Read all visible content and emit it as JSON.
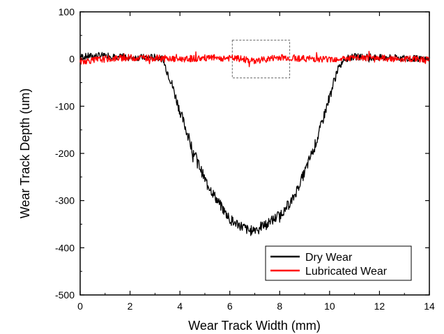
{
  "chart_data": {
    "type": "line",
    "title": "",
    "xlabel": "Wear Track Width (mm)",
    "ylabel": "Wear Track Depth (um)",
    "xlim": [
      0,
      14
    ],
    "ylim": [
      -500,
      100
    ],
    "x_ticks": [
      "0",
      "2",
      "4",
      "6",
      "8",
      "10",
      "12",
      "14"
    ],
    "y_ticks": [
      "100",
      "0",
      "-100",
      "-200",
      "-300",
      "-400",
      "-500"
    ],
    "grid": false,
    "legend_position": "bottom-right",
    "inset_box": {
      "x": [
        6.1,
        8.4
      ],
      "y": [
        -40,
        40
      ],
      "style": "dashed"
    },
    "series": [
      {
        "name": "Dry Wear",
        "color": "#000000",
        "x": [
          0,
          1,
          2,
          3,
          3.3,
          3.6,
          4,
          4.5,
          5,
          5.5,
          6,
          6.5,
          6.8,
          7,
          7.5,
          8,
          8.5,
          9,
          9.5,
          10,
          10.3,
          10.6,
          11,
          12,
          13,
          14
        ],
        "y": [
          5,
          8,
          3,
          4,
          0,
          -40,
          -110,
          -190,
          -255,
          -300,
          -340,
          -355,
          -365,
          -360,
          -350,
          -330,
          -300,
          -240,
          -170,
          -80,
          -25,
          0,
          5,
          3,
          2,
          0
        ]
      },
      {
        "name": "Lubricated Wear",
        "color": "#ff0000",
        "x": [
          0,
          1,
          2,
          3,
          4,
          5,
          6,
          6.5,
          7,
          7.5,
          8,
          9,
          10,
          11,
          12,
          13,
          14
        ],
        "y": [
          -5,
          0,
          3,
          2,
          0,
          2,
          2,
          0,
          -4,
          0,
          4,
          1,
          0,
          2,
          2,
          0,
          0
        ]
      }
    ]
  }
}
